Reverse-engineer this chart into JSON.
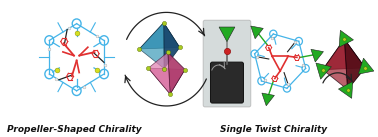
{
  "background_color": "#ffffff",
  "title_left": "Propeller-Shaped Chirality",
  "title_right": "Single Twist Chirality",
  "title_fontsize": 6.5,
  "fig_width": 3.78,
  "fig_height": 1.37,
  "blue": "#45b4e8",
  "dark_blue": "#1a3a5c",
  "red_core": "#e03030",
  "yellow_node": "#d4e020",
  "black_stick": "#222222",
  "white_atom": "#f0f0f0",
  "teal1": "#2a7ca8",
  "teal2": "#1a4a70",
  "teal3": "#3a9ab8",
  "pink1": "#d06090",
  "pink2": "#b04070",
  "pink3": "#e080b0",
  "darkred1": "#8b1a2a",
  "darkred2": "#5a0f1a",
  "darkred3": "#a02535",
  "green1": "#22aa22",
  "green2": "#44cc22",
  "yellow_green": "#aacc22",
  "gray_bg": "#c8d0d0",
  "dark_body": "#2a2a2a",
  "gray_cap": "#888888",
  "red_dot": "#cc2222",
  "arrow_color": "#222222"
}
